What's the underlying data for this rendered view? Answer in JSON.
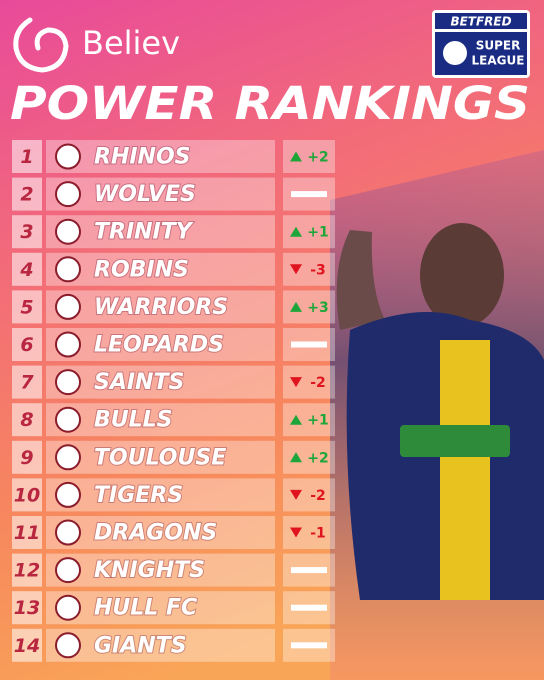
{
  "brand": "Believ",
  "badge": {
    "top": "BETFRED",
    "bottom_1": "SUPER",
    "bottom_2": "LEAGUE"
  },
  "title": "POWER RANKINGS",
  "rows": [
    {
      "rank": 1,
      "team": "RHINOS",
      "change": "+2"
    },
    {
      "rank": 2,
      "team": "WOLVES",
      "change": null
    },
    {
      "rank": 3,
      "team": "TRINITY",
      "change": "+1"
    },
    {
      "rank": 4,
      "team": "ROBINS",
      "change": "-3"
    },
    {
      "rank": 5,
      "team": "WARRIORS",
      "change": "+3"
    },
    {
      "rank": 6,
      "team": "LEOPARDS",
      "change": null
    },
    {
      "rank": 7,
      "team": "SAINTS",
      "change": "-2"
    },
    {
      "rank": 8,
      "team": "BULLS",
      "change": "+1"
    },
    {
      "rank": 9,
      "team": "TOULOUSE",
      "change": "+2"
    },
    {
      "rank": 10,
      "team": "TIGERS",
      "change": "-2"
    },
    {
      "rank": 11,
      "team": "DRAGONS",
      "change": "-1"
    },
    {
      "rank": 12,
      "team": "KNIGHTS",
      "change": null
    },
    {
      "rank": 13,
      "team": "HULL FC",
      "change": null
    },
    {
      "rank": 14,
      "team": "GIANTS",
      "change": null
    }
  ]
}
